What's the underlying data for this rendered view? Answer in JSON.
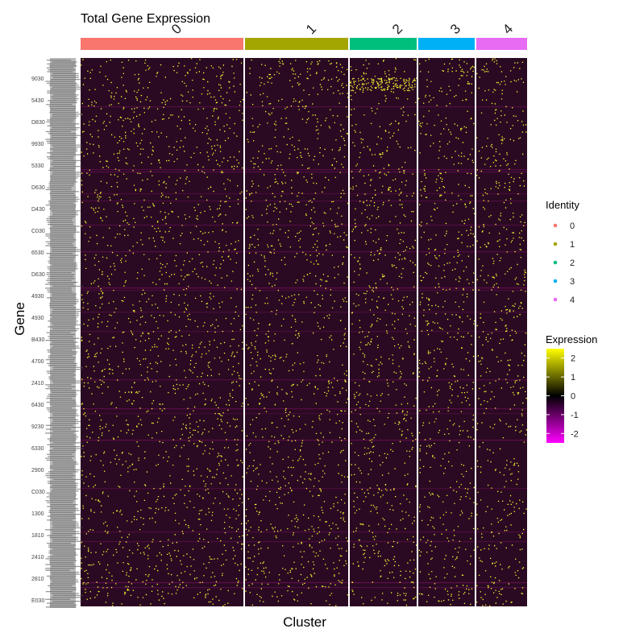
{
  "chart_data": {
    "type": "heatmap",
    "title": "Total Gene Expression",
    "xlabel": "Cluster",
    "ylabel": "Gene",
    "clusters": [
      {
        "label": "0",
        "color": "#F8766D"
      },
      {
        "label": "1",
        "color": "#A3A500"
      },
      {
        "label": "2",
        "color": "#00BF7D"
      },
      {
        "label": "3",
        "color": "#00B0F6"
      },
      {
        "label": "4",
        "color": "#E76BF3"
      }
    ],
    "gene_labels_sample": [
      "9030",
      "5430",
      "D830",
      "9930",
      "5330",
      "D630",
      "D430",
      "C030",
      "6530",
      "D630",
      "4930",
      "4930",
      "B430",
      "4700",
      "2410",
      "6430",
      "9230",
      "6330",
      "2900",
      "C030",
      "1300",
      "1810",
      "2410",
      "2810",
      "E030"
    ],
    "legend": {
      "identity_title": "Identity",
      "expression_title": "Expression",
      "expression_ticks": [
        2,
        1,
        0,
        -1,
        -2
      ],
      "expression_range": [
        -2.5,
        2.5
      ],
      "color_low": "#FF00FF",
      "color_mid": "#000000",
      "color_high": "#FFFF00"
    },
    "body_color": "#2a0a22",
    "grid": false
  }
}
